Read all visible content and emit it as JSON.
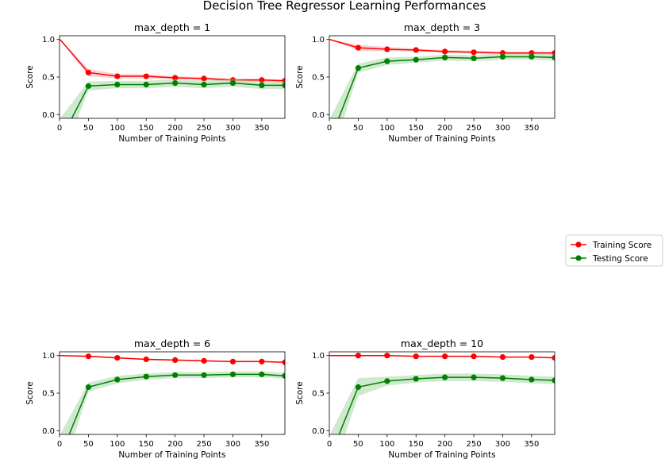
{
  "figure": {
    "title": "Decision Tree Regressor Learning Performances"
  },
  "legend": {
    "placement": "right-center",
    "entries": [
      {
        "label": "Training Score",
        "color": "#ff0000"
      },
      {
        "label": "Testing Score",
        "color": "#008000"
      }
    ]
  },
  "colors": {
    "training": "#ff0000",
    "testing": "#008000",
    "training_band": "#f4a0a0",
    "testing_band": "#9fd49f"
  },
  "chart_data": [
    {
      "type": "line",
      "title": "max_depth = 1",
      "xlabel": "Number of Training Points",
      "ylabel": "Score",
      "xlim": [
        0,
        390
      ],
      "ylim": [
        -0.05,
        1.05
      ],
      "xticks": [
        0,
        50,
        100,
        150,
        200,
        250,
        300,
        350
      ],
      "yticks": [
        0.0,
        0.5,
        1.0
      ],
      "x": [
        1,
        50,
        100,
        150,
        200,
        250,
        300,
        350,
        390
      ],
      "series": [
        {
          "name": "Training Score",
          "values": [
            1.0,
            0.56,
            0.51,
            0.51,
            0.49,
            0.48,
            0.46,
            0.46,
            0.45
          ],
          "band": [
            0.0,
            0.05,
            0.03,
            0.03,
            0.02,
            0.02,
            0.02,
            0.02,
            0.02
          ],
          "points_from_index": 1
        },
        {
          "name": "Testing Score",
          "values": [
            -0.35,
            0.38,
            0.4,
            0.4,
            0.42,
            0.4,
            0.42,
            0.39,
            0.39
          ],
          "band": [
            0.3,
            0.06,
            0.05,
            0.05,
            0.05,
            0.05,
            0.05,
            0.05,
            0.05
          ],
          "points_from_index": 1
        }
      ]
    },
    {
      "type": "line",
      "title": "max_depth = 3",
      "xlabel": "Number of Training Points",
      "ylabel": "Score",
      "xlim": [
        0,
        390
      ],
      "ylim": [
        -0.05,
        1.05
      ],
      "xticks": [
        0,
        50,
        100,
        150,
        200,
        250,
        300,
        350
      ],
      "yticks": [
        0.0,
        0.5,
        1.0
      ],
      "x": [
        1,
        50,
        100,
        150,
        200,
        250,
        300,
        350,
        390
      ],
      "series": [
        {
          "name": "Training Score",
          "values": [
            1.0,
            0.89,
            0.87,
            0.86,
            0.84,
            0.83,
            0.82,
            0.82,
            0.82
          ],
          "band": [
            0.0,
            0.04,
            0.03,
            0.02,
            0.02,
            0.02,
            0.02,
            0.02,
            0.02
          ],
          "points_from_index": 1
        },
        {
          "name": "Testing Score",
          "values": [
            -0.35,
            0.62,
            0.71,
            0.73,
            0.76,
            0.75,
            0.77,
            0.77,
            0.76
          ],
          "band": [
            0.3,
            0.06,
            0.05,
            0.04,
            0.04,
            0.04,
            0.04,
            0.04,
            0.04
          ],
          "points_from_index": 1
        }
      ]
    },
    {
      "type": "line",
      "title": "max_depth = 6",
      "xlabel": "Number of Training Points",
      "ylabel": "Score",
      "xlim": [
        0,
        390
      ],
      "ylim": [
        -0.05,
        1.05
      ],
      "xticks": [
        0,
        50,
        100,
        150,
        200,
        250,
        300,
        350
      ],
      "yticks": [
        0.0,
        0.5,
        1.0
      ],
      "x": [
        1,
        50,
        100,
        150,
        200,
        250,
        300,
        350,
        390
      ],
      "series": [
        {
          "name": "Training Score",
          "values": [
            1.0,
            0.99,
            0.97,
            0.95,
            0.94,
            0.93,
            0.92,
            0.92,
            0.91
          ],
          "band": [
            0.0,
            0.01,
            0.01,
            0.01,
            0.01,
            0.01,
            0.01,
            0.01,
            0.01
          ],
          "points_from_index": 1
        },
        {
          "name": "Testing Score",
          "values": [
            -0.35,
            0.58,
            0.68,
            0.72,
            0.74,
            0.74,
            0.75,
            0.75,
            0.73
          ],
          "band": [
            0.3,
            0.06,
            0.05,
            0.04,
            0.04,
            0.04,
            0.04,
            0.04,
            0.04
          ],
          "points_from_index": 1
        }
      ]
    },
    {
      "type": "line",
      "title": "max_depth = 10",
      "xlabel": "Number of Training Points",
      "ylabel": "Score",
      "xlim": [
        0,
        390
      ],
      "ylim": [
        -0.05,
        1.05
      ],
      "xticks": [
        0,
        50,
        100,
        150,
        200,
        250,
        300,
        350
      ],
      "yticks": [
        0.0,
        0.5,
        1.0
      ],
      "x": [
        1,
        50,
        100,
        150,
        200,
        250,
        300,
        350,
        390
      ],
      "series": [
        {
          "name": "Training Score",
          "values": [
            1.0,
            1.0,
            1.0,
            0.99,
            0.99,
            0.99,
            0.98,
            0.98,
            0.97
          ],
          "band": [
            0.0,
            0.005,
            0.005,
            0.005,
            0.005,
            0.005,
            0.005,
            0.005,
            0.005
          ],
          "points_from_index": 1
        },
        {
          "name": "Testing Score",
          "values": [
            -0.35,
            0.58,
            0.66,
            0.69,
            0.71,
            0.71,
            0.7,
            0.68,
            0.67
          ],
          "band": [
            0.3,
            0.12,
            0.06,
            0.05,
            0.05,
            0.05,
            0.05,
            0.05,
            0.05
          ],
          "points_from_index": 1
        }
      ]
    }
  ]
}
